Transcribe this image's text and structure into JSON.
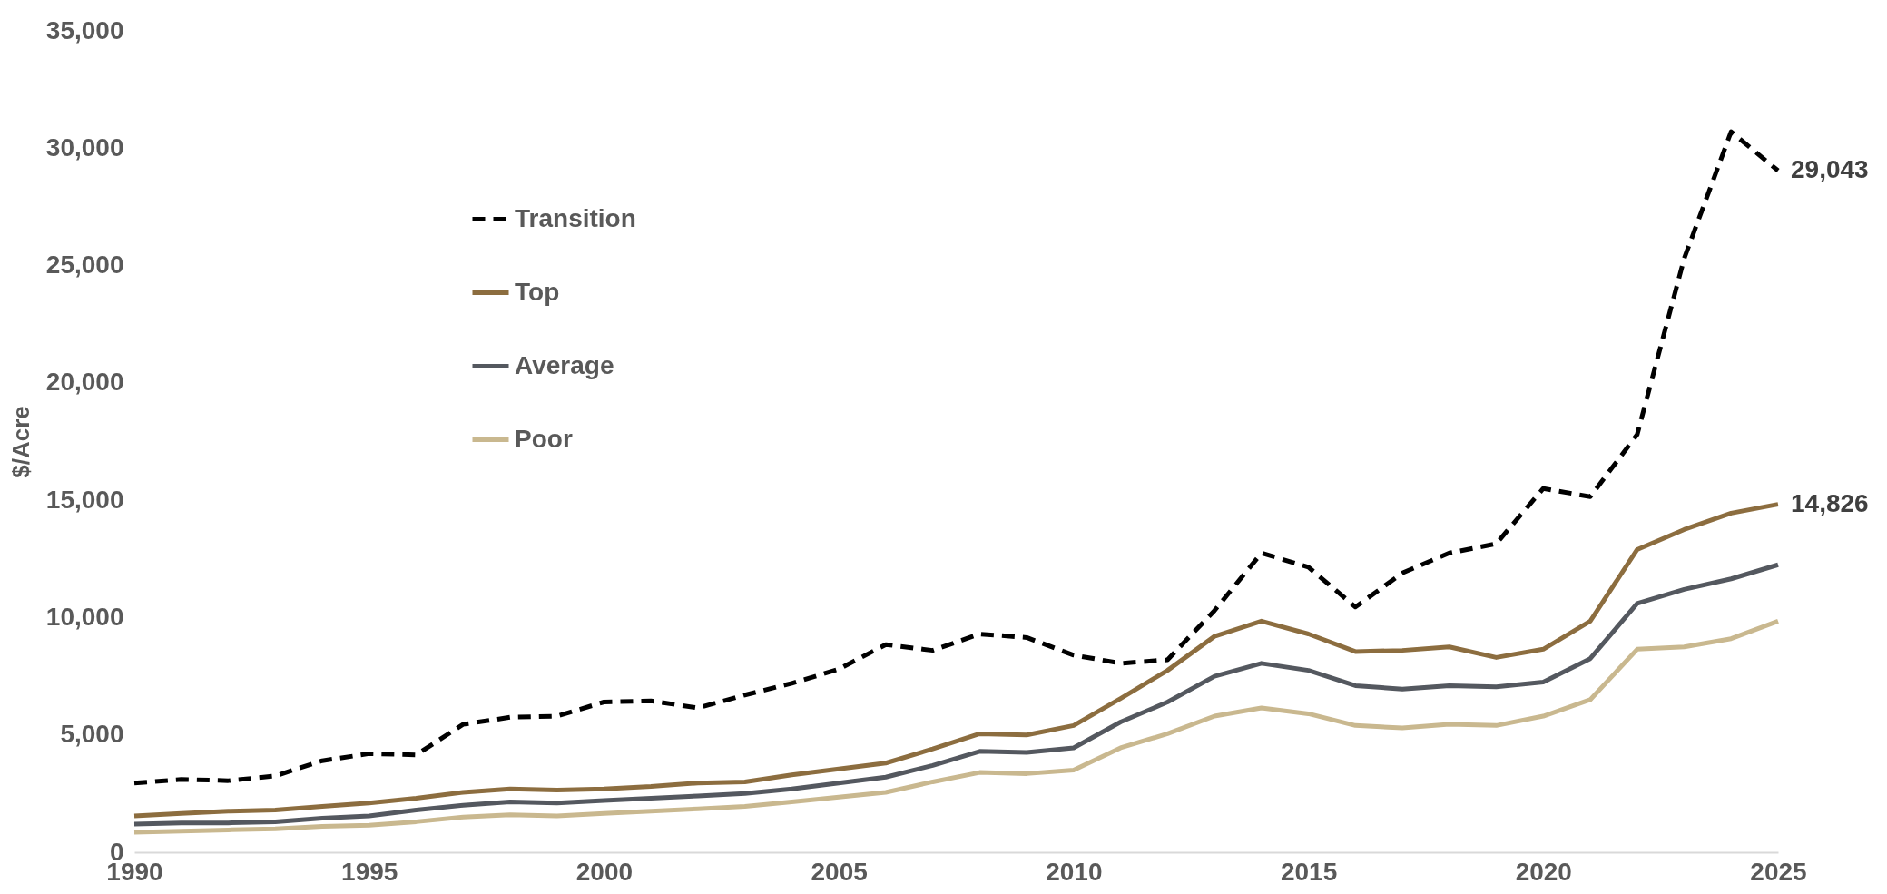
{
  "chart_data": {
    "type": "line",
    "ylabel": "$/Acre",
    "x": [
      1990,
      1991,
      1992,
      1993,
      1994,
      1995,
      1996,
      1997,
      1998,
      1999,
      2000,
      2001,
      2002,
      2003,
      2004,
      2005,
      2006,
      2007,
      2008,
      2009,
      2010,
      2011,
      2012,
      2013,
      2014,
      2015,
      2016,
      2017,
      2018,
      2019,
      2020,
      2021,
      2022,
      2023,
      2024,
      2025
    ],
    "series": [
      {
        "name": "Transition",
        "color": "#000000",
        "line_style": "dashed",
        "values": [
          2950,
          3100,
          3050,
          3250,
          3900,
          4200,
          4150,
          5450,
          5750,
          5800,
          6400,
          6450,
          6150,
          6700,
          7200,
          7800,
          8850,
          8600,
          9300,
          9150,
          8400,
          8050,
          8200,
          10300,
          12750,
          12150,
          10450,
          11900,
          12750,
          13150,
          15500,
          15150,
          17800,
          25300,
          30700,
          29043
        ]
      },
      {
        "name": "Top",
        "color": "#8c6d3f",
        "values": [
          1550,
          1650,
          1750,
          1800,
          1950,
          2100,
          2300,
          2550,
          2700,
          2650,
          2700,
          2800,
          2950,
          3000,
          3300,
          3550,
          3800,
          4400,
          5050,
          5000,
          5400,
          6550,
          7750,
          9200,
          9850,
          9300,
          8550,
          8600,
          8750,
          8300,
          8650,
          9850,
          12900,
          13750,
          14450,
          14826
        ]
      },
      {
        "name": "Average",
        "color": "#54585f",
        "values": [
          1200,
          1250,
          1250,
          1300,
          1450,
          1550,
          1800,
          2000,
          2150,
          2100,
          2200,
          2300,
          2400,
          2500,
          2700,
          2950,
          3200,
          3700,
          4300,
          4250,
          4450,
          5550,
          6400,
          7500,
          8050,
          7750,
          7100,
          6950,
          7100,
          7050,
          7250,
          8250,
          10600,
          11200,
          11650,
          12250
        ]
      },
      {
        "name": "Poor",
        "color": "#c9b88f",
        "values": [
          850,
          900,
          950,
          1000,
          1100,
          1150,
          1300,
          1500,
          1600,
          1550,
          1650,
          1750,
          1850,
          1950,
          2150,
          2350,
          2550,
          3000,
          3400,
          3350,
          3500,
          4450,
          5050,
          5800,
          6150,
          5900,
          5400,
          5300,
          5450,
          5400,
          5800,
          6500,
          8650,
          8750,
          9100,
          9850
        ]
      }
    ],
    "xlim": [
      1990,
      2025
    ],
    "xticks": [
      1990,
      1995,
      2000,
      2005,
      2010,
      2015,
      2020,
      2025
    ],
    "ylim": [
      0,
      35000
    ],
    "yticks": [
      0,
      {
        "value": 5000,
        "label": "5,000"
      },
      {
        "value": 10000,
        "label": "10,000"
      },
      {
        "value": 15000,
        "label": "15,000"
      },
      {
        "value": 20000,
        "label": "20,000"
      },
      {
        "value": 25000,
        "label": "25,000"
      },
      {
        "value": 30000,
        "label": "30,000"
      },
      {
        "value": 35000,
        "label": "35,000"
      }
    ],
    "grid": false,
    "legend": "top left",
    "line_style": "solid",
    "marker": "none",
    "annotations": [
      {
        "text": "29,043",
        "x": 2025,
        "y": 29043
      },
      {
        "text": "14,826",
        "x": 2025,
        "y": 14826
      }
    ]
  }
}
